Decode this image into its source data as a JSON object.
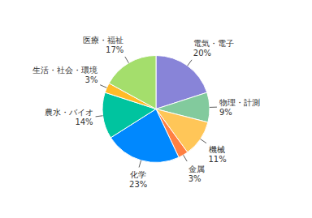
{
  "chart_data": {
    "type": "pie",
    "categories": [
      "電気・電子",
      "物理・計測",
      "機械",
      "金属",
      "化学",
      "農水・バイオ",
      "生活・社会・環境",
      "医療・福祉"
    ],
    "values": [
      20,
      9,
      11,
      3,
      23,
      14,
      3,
      17
    ],
    "value_labels": [
      "20%",
      "9%",
      "11%",
      "3%",
      "23%",
      "14%",
      "3%",
      "17%"
    ],
    "data_labels": true,
    "colors": [
      "#8884d8",
      "#82ca9d",
      "#ffc658",
      "#ff8042",
      "#0088fe",
      "#00c49f",
      "#ffbb28",
      "#a4de6c"
    ]
  }
}
